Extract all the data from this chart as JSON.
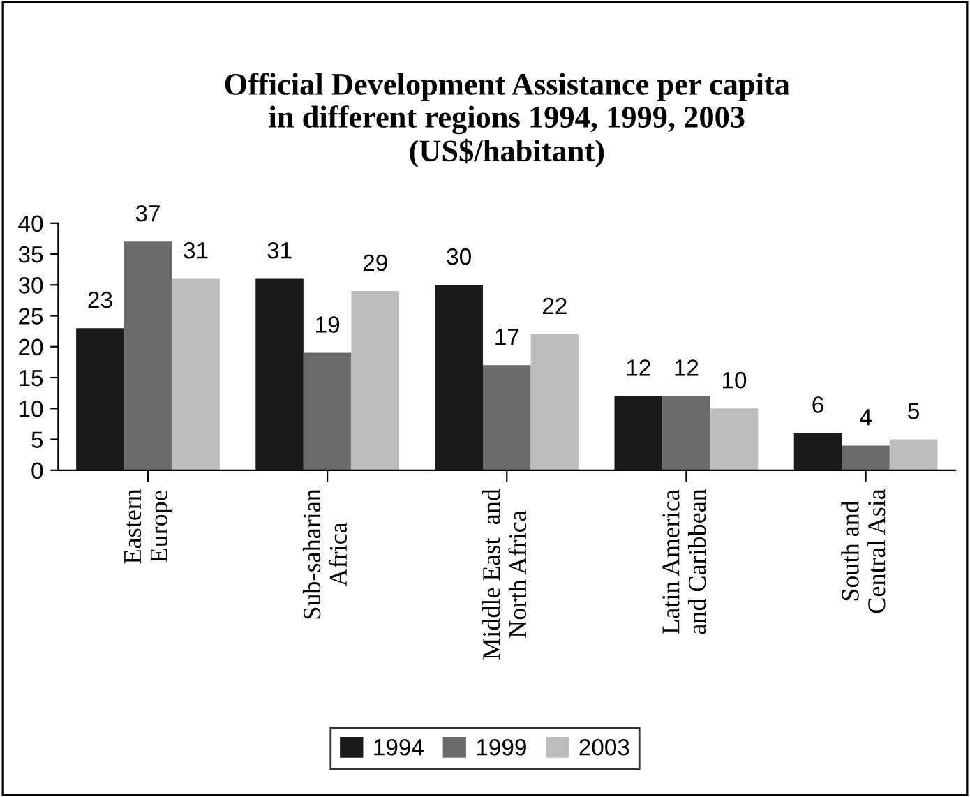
{
  "chart_data": {
    "type": "bar",
    "title": "Official Development Assistance per capita\nin different regions 1994, 1999, 2003\n(US$/habitant)",
    "categories": [
      "Eastern\nEurope",
      "Sub-saharian\nAfrica",
      "Middle East  and\nNorth Africa",
      "Latin America\nand Caribbean",
      "South and\nCentral Asia"
    ],
    "series": [
      {
        "name": "1994",
        "color": "#1a1a1a",
        "values": [
          23,
          31,
          30,
          12,
          6
        ]
      },
      {
        "name": "1999",
        "color": "#6b6b6b",
        "values": [
          37,
          19,
          17,
          12,
          4
        ]
      },
      {
        "name": "2003",
        "color": "#bdbdbd",
        "values": [
          31,
          29,
          22,
          10,
          5
        ]
      }
    ],
    "ylim": [
      0,
      40
    ],
    "yticks": [
      0,
      5,
      10,
      15,
      20,
      25,
      30,
      35,
      40
    ],
    "grid": false,
    "legend": "bottom",
    "data_labels": true
  }
}
